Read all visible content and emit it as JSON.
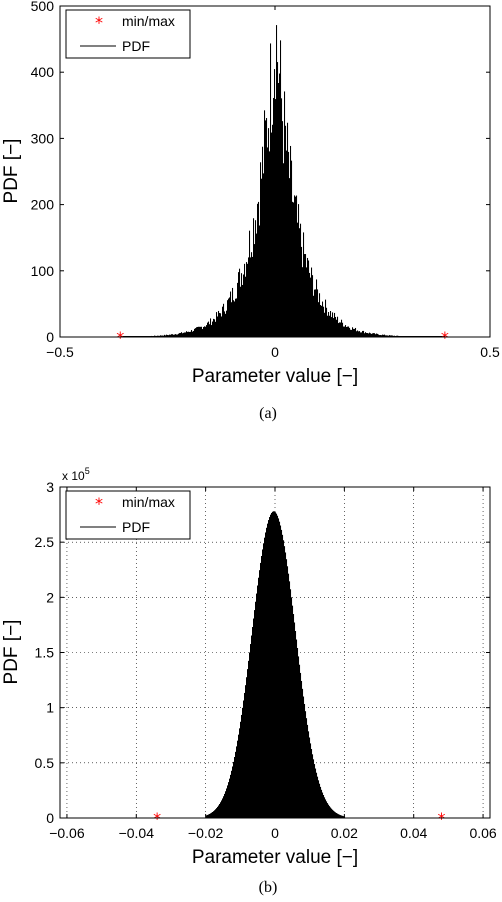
{
  "chart_data": [
    {
      "type": "histogram",
      "panel": "(a)",
      "xlabel": "Parameter value [−]",
      "ylabel": "PDF [−]",
      "xlim": [
        -0.5,
        0.5
      ],
      "ylim": [
        0,
        500
      ],
      "xticks": [
        -0.5,
        0,
        0.5
      ],
      "xtick_labels": [
        "−0.5",
        "0",
        "0.5"
      ],
      "yticks": [
        0,
        100,
        200,
        300,
        400,
        500
      ],
      "ytick_labels": [
        "0",
        "100",
        "200",
        "300",
        "400",
        "500"
      ],
      "grid": false,
      "legend": {
        "position": "top-left",
        "entries": [
          "min/max",
          "PDF"
        ]
      },
      "minmax": {
        "min": -0.36,
        "max": 0.395
      },
      "pdf_peak": 470,
      "pdf_shape": "laplace",
      "pdf_scale": 0.05,
      "pdf_range": [
        -0.36,
        0.395
      ]
    },
    {
      "type": "histogram",
      "panel": "(b)",
      "xlabel": "Parameter value [−]",
      "ylabel": "PDF [−]",
      "xlim": [
        -0.062,
        0.062
      ],
      "ylim": [
        0,
        3
      ],
      "y_multiplier": "x 10",
      "y_multiplier_exp": "5",
      "xticks": [
        -0.06,
        -0.04,
        -0.02,
        0,
        0.02,
        0.04,
        0.06
      ],
      "xtick_labels": [
        "−0.06",
        "−0.04",
        "−0.02",
        "0",
        "0.02",
        "0.04",
        "0.06"
      ],
      "yticks": [
        0,
        0.5,
        1,
        1.5,
        2,
        2.5,
        3
      ],
      "ytick_labels": [
        "0",
        "0.5",
        "1",
        "1.5",
        "2",
        "2.5",
        "3"
      ],
      "grid": true,
      "legend": {
        "position": "top-left",
        "entries": [
          "min/max",
          "PDF"
        ]
      },
      "minmax": {
        "min": -0.034,
        "max": 0.048
      },
      "pdf_peak": 2.78,
      "pdf_shape": "gaussian",
      "pdf_center": -0.0005,
      "pdf_sigma": 0.0063,
      "pdf_range": [
        -0.02,
        0.02
      ]
    }
  ],
  "captions": [
    "(a)",
    "(b)"
  ],
  "colors": {
    "marker": "#ff0000",
    "pdf": "#000000"
  }
}
